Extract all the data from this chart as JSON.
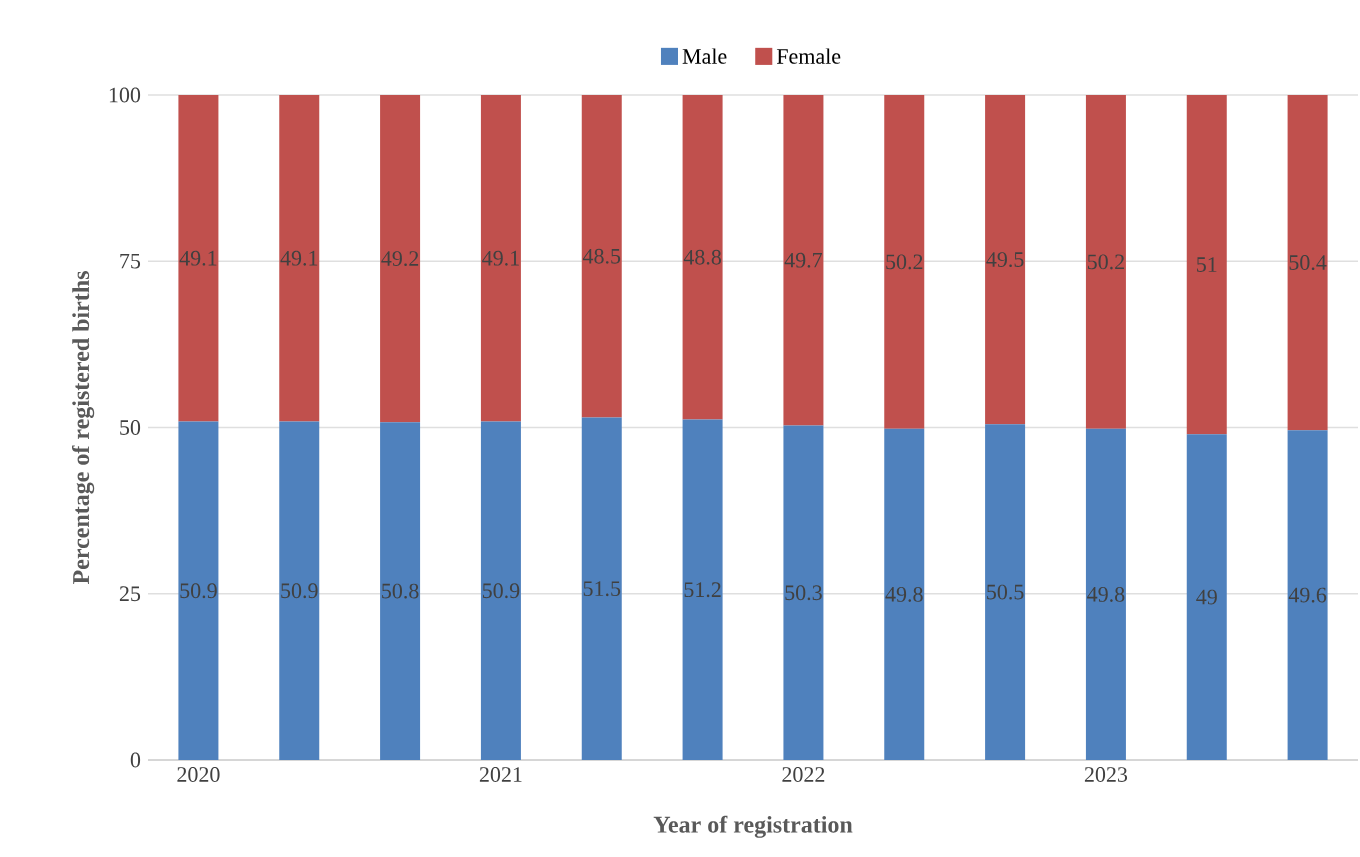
{
  "chart_data": {
    "type": "bar",
    "stacked": true,
    "xlabel": "Year of registration",
    "ylabel": "Percentage of registered births",
    "categories": [
      "2020",
      null,
      null,
      "2021",
      null,
      null,
      "2022",
      null,
      null,
      "2023",
      null,
      null
    ],
    "series": [
      {
        "name": "Male",
        "color": "#4f81bd",
        "values": [
          50.9,
          50.9,
          50.8,
          50.9,
          51.5,
          51.2,
          50.3,
          49.8,
          50.5,
          49.8,
          49,
          49.6
        ]
      },
      {
        "name": "Female",
        "color": "#c0504d",
        "values": [
          49.1,
          49.1,
          49.2,
          49.1,
          48.5,
          48.8,
          49.7,
          50.2,
          49.5,
          50.2,
          51,
          50.4
        ]
      }
    ],
    "ylim": [
      0,
      100
    ],
    "yticks": [
      0,
      25,
      50,
      75,
      100
    ],
    "grid": "y",
    "legend": "top",
    "data_labels": true
  }
}
